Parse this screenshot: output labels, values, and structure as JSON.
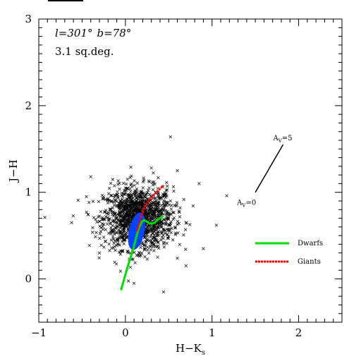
{
  "chart_data": {
    "type": "scatter",
    "title": "",
    "xlabel_main": "H−K",
    "xlabel_sub": "s",
    "ylabel": "J−H",
    "xlim": [
      -1,
      2.5
    ],
    "ylim": [
      -0.5,
      3
    ],
    "x_ticks": [
      -1,
      0,
      1,
      2
    ],
    "x_tick_labels": [
      "−1",
      "0",
      "1",
      "2"
    ],
    "y_ticks": [
      0,
      1,
      2,
      3
    ],
    "y_tick_labels": [
      "0",
      "1",
      "2",
      "3"
    ],
    "annotations": {
      "field_l": "l=301°",
      "field_b": "b=78°",
      "area": "3.1 sq.deg.",
      "reddening_start_label": "A",
      "reddening_start_sub": "V",
      "reddening_start_value": "=0",
      "reddening_end_label": "A",
      "reddening_end_sub": "V",
      "reddening_end_value": "=5"
    },
    "reddening_vector": {
      "x": [
        1.5,
        1.82
      ],
      "y": [
        1.0,
        1.55
      ]
    },
    "legend": {
      "placement": "lower-right",
      "entries": [
        {
          "name": "Dwarfs",
          "color": "#00e000"
        },
        {
          "name": "Giants",
          "color": "#ff0000"
        }
      ]
    },
    "series": [
      {
        "name": "Dwarfs",
        "type": "line",
        "color": "#00e000",
        "x": [
          -0.05,
          -0.02,
          0.02,
          0.06,
          0.1,
          0.13,
          0.16,
          0.19,
          0.22,
          0.25,
          0.28,
          0.31,
          0.34,
          0.37,
          0.4,
          0.44
        ],
        "y": [
          -0.13,
          -0.02,
          0.12,
          0.25,
          0.38,
          0.5,
          0.6,
          0.66,
          0.68,
          0.66,
          0.64,
          0.64,
          0.65,
          0.68,
          0.7,
          0.73
        ]
      },
      {
        "name": "Giants",
        "type": "line",
        "color": "#ff0000",
        "x": [
          0.13,
          0.16,
          0.19,
          0.22,
          0.25,
          0.29,
          0.33,
          0.37,
          0.41,
          0.44
        ],
        "y": [
          0.55,
          0.65,
          0.75,
          0.83,
          0.88,
          0.93,
          0.97,
          1.01,
          1.05,
          1.08
        ]
      }
    ],
    "scatter_points": {
      "color": "#000000",
      "marker": "x",
      "center": [
        0.15,
        0.7
      ],
      "spread": [
        0.2,
        0.18
      ],
      "count": 1400,
      "outliers": [
        [
          -0.93,
          0.71
        ],
        [
          -0.62,
          0.65
        ],
        [
          1.17,
          0.96
        ],
        [
          0.52,
          1.64
        ],
        [
          0.1,
          -0.05
        ],
        [
          0.44,
          -0.15
        ],
        [
          1.05,
          0.62
        ],
        [
          -0.4,
          1.18
        ],
        [
          0.85,
          1.1
        ],
        [
          -0.3,
          0.3
        ],
        [
          0.7,
          0.15
        ],
        [
          0.9,
          0.35
        ],
        [
          -0.45,
          0.95
        ],
        [
          0.3,
          1.28
        ],
        [
          0.6,
          1.25
        ]
      ]
    },
    "density_region": {
      "color": "#0044ff",
      "center": [
        0.13,
        0.55
      ],
      "radii": [
        0.09,
        0.22
      ]
    }
  }
}
